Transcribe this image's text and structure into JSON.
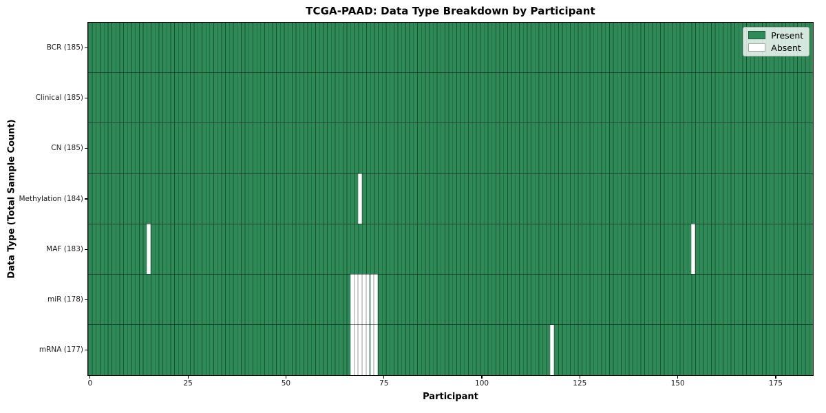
{
  "chart_data": {
    "type": "heatmap",
    "title": "TCGA-PAAD: Data Type Breakdown by Participant",
    "xlabel": "Participant",
    "ylabel": "Data Type (Total Sample Count)",
    "x_ticks": [
      0,
      25,
      50,
      75,
      100,
      125,
      150,
      175
    ],
    "xlim": [
      -0.5,
      184.5
    ],
    "n_participants": 185,
    "grid": false,
    "legend_position": "upper right",
    "legend": [
      {
        "label": "Present",
        "color": "#2E8B57"
      },
      {
        "label": "Absent",
        "color": "#FFFFFF"
      }
    ],
    "colors": {
      "present": "#2E8B57",
      "absent": "#FFFFFF",
      "bar_edge": "rgba(0,0,0,0.42)"
    },
    "rows": [
      {
        "label": "BCR (185)",
        "data_type": "BCR",
        "present_count": 185,
        "absent_participants": []
      },
      {
        "label": "Clinical (185)",
        "data_type": "Clinical",
        "present_count": 185,
        "absent_participants": []
      },
      {
        "label": "CN (185)",
        "data_type": "CN",
        "present_count": 185,
        "absent_participants": []
      },
      {
        "label": "Methylation (184)",
        "data_type": "Methylation",
        "present_count": 184,
        "absent_participants": [
          69
        ]
      },
      {
        "label": "MAF (183)",
        "data_type": "MAF",
        "present_count": 183,
        "absent_participants": [
          15,
          154
        ]
      },
      {
        "label": "miR (178)",
        "data_type": "miR",
        "present_count": 178,
        "absent_participants": [
          67,
          68,
          69,
          70,
          71,
          72,
          73
        ]
      },
      {
        "label": "mRNA (177)",
        "data_type": "mRNA",
        "present_count": 177,
        "absent_participants": [
          67,
          68,
          69,
          70,
          71,
          72,
          73,
          118
        ]
      }
    ]
  }
}
